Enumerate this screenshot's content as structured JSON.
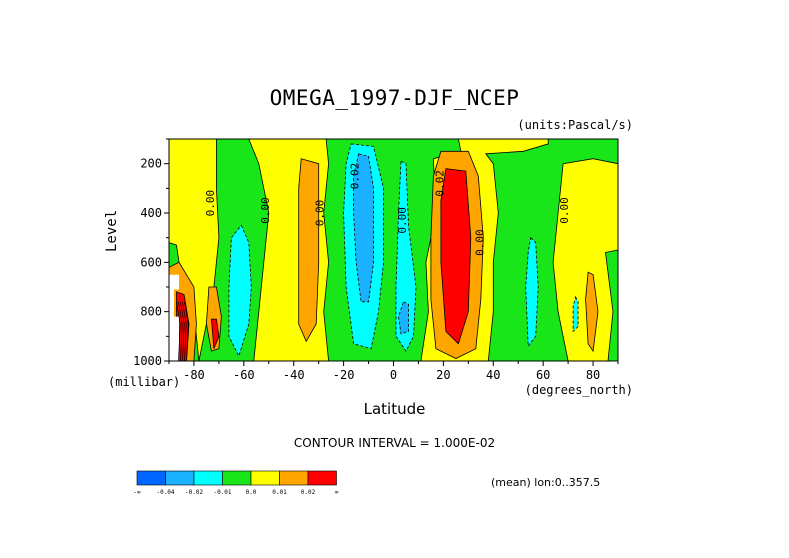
{
  "chart_data": {
    "type": "heatmap",
    "title": "OMEGA_1997-DJF_NCEP",
    "units": "(units:Pascal/s)",
    "xlabel": "Latitude",
    "xunits": "(degrees_north)",
    "ylabel": "Level",
    "yunits": "(millibar)",
    "xlim": [
      -90,
      90
    ],
    "ylim": [
      1000,
      100
    ],
    "xticks": [
      "-80",
      "-60",
      "-40",
      "-20",
      "0",
      "20",
      "40",
      "60",
      "80"
    ],
    "xtick_values": [
      -80,
      -60,
      -40,
      -20,
      0,
      20,
      40,
      60,
      80
    ],
    "yticks": [
      "200",
      "400",
      "600",
      "800",
      "1000"
    ],
    "ytick_values": [
      200,
      400,
      600,
      800,
      1000
    ],
    "background_color": "#ffff00",
    "contour_interval_text": "CONTOUR INTERVAL = 1.000E-02",
    "mean_text": "(mean) lon:0..357.5",
    "colorbar": {
      "labels": [
        "-∞",
        "-0.04",
        "-0.02",
        "-0.01",
        "0.0",
        "0.01",
        "0.02",
        "∞"
      ],
      "colors": [
        "#0066ff",
        "#1ab2ff",
        "#00ffff",
        "#19e619",
        "#ffff00",
        "#ffa500",
        "#ff0000"
      ]
    },
    "contour_labels": [
      {
        "text": "0.00",
        "lat": -72,
        "level": 360
      },
      {
        "text": "0.00",
        "lat": -50,
        "level": 390
      },
      {
        "text": "0.00",
        "lat": -28,
        "level": 400
      },
      {
        "text": "0.02",
        "lat": -14,
        "level": 250
      },
      {
        "text": "0.00",
        "lat": 5,
        "level": 430
      },
      {
        "text": "0.02",
        "lat": 20,
        "level": 280
      },
      {
        "text": "0.00",
        "lat": 36,
        "level": 520
      },
      {
        "text": "0.00",
        "lat": 70,
        "level": 390
      }
    ],
    "regions": [
      {
        "level": 0.0,
        "color": "#19e619",
        "points": [
          [
            -71,
            100
          ],
          [
            -58,
            100
          ],
          [
            -54,
            200
          ],
          [
            -50,
            400
          ],
          [
            -52,
            600
          ],
          [
            -54,
            800
          ],
          [
            -56,
            1000
          ],
          [
            -78,
            1000
          ],
          [
            -76,
            900
          ],
          [
            -72,
            700
          ],
          [
            -70,
            500
          ],
          [
            -71,
            300
          ]
        ]
      },
      {
        "level": 0.0,
        "color": "#19e619",
        "points": [
          [
            -27,
            100
          ],
          [
            26,
            100
          ],
          [
            27,
            150
          ],
          [
            16,
            180
          ],
          [
            17,
            400
          ],
          [
            13,
            600
          ],
          [
            14,
            800
          ],
          [
            11,
            1000
          ],
          [
            -26,
            1000
          ],
          [
            -28,
            800
          ],
          [
            -26,
            600
          ],
          [
            -28,
            400
          ],
          [
            -26,
            200
          ]
        ]
      },
      {
        "level": 0.0,
        "color": "#19e619",
        "points": [
          [
            37,
            160
          ],
          [
            52,
            150
          ],
          [
            62,
            120
          ],
          [
            62,
            100
          ],
          [
            90,
            100
          ],
          [
            90,
            200
          ],
          [
            80,
            180
          ],
          [
            68,
            200
          ],
          [
            66,
            400
          ],
          [
            64,
            600
          ],
          [
            66,
            800
          ],
          [
            70,
            1000
          ],
          [
            38,
            1000
          ],
          [
            40,
            800
          ],
          [
            40,
            600
          ],
          [
            42,
            400
          ],
          [
            40,
            200
          ]
        ]
      },
      {
        "level": 0.0,
        "color": "#19e619",
        "points": [
          [
            -90,
            520
          ],
          [
            -87,
            530
          ],
          [
            -86,
            600
          ],
          [
            -90,
            620
          ]
        ]
      },
      {
        "level": 0.0,
        "color": "#19e619",
        "points": [
          [
            -90,
            660
          ],
          [
            -83,
            650
          ],
          [
            -80,
            800
          ],
          [
            -78,
            1000
          ],
          [
            -90,
            1000
          ]
        ]
      },
      {
        "level": 0.0,
        "color": "#19e619",
        "points": [
          [
            85,
            560
          ],
          [
            90,
            550
          ],
          [
            90,
            1000
          ],
          [
            86,
            1000
          ],
          [
            88,
            800
          ]
        ]
      },
      {
        "level": -0.01,
        "color": "#00ffff",
        "points": [
          [
            -61,
            450
          ],
          [
            -58,
            520
          ],
          [
            -57,
            700
          ],
          [
            -58,
            850
          ],
          [
            -62,
            980
          ],
          [
            -66,
            900
          ],
          [
            -66,
            700
          ],
          [
            -65,
            500
          ]
        ]
      },
      {
        "level": -0.01,
        "color": "#00ffff",
        "points": [
          [
            -17,
            120
          ],
          [
            -8,
            130
          ],
          [
            -4,
            300
          ],
          [
            -4,
            600
          ],
          [
            -6,
            800
          ],
          [
            -9,
            950
          ],
          [
            -16,
            930
          ],
          [
            -19,
            700
          ],
          [
            -20,
            400
          ],
          [
            -19,
            200
          ]
        ]
      },
      {
        "level": -0.01,
        "color": "#00ffff",
        "points": [
          [
            3,
            190
          ],
          [
            5,
            200
          ],
          [
            6,
            450
          ],
          [
            9,
            700
          ],
          [
            8,
            900
          ],
          [
            5,
            960
          ],
          [
            1,
            900
          ],
          [
            1,
            700
          ],
          [
            2,
            400
          ]
        ]
      },
      {
        "level": -0.01,
        "color": "#00ffff",
        "points": [
          [
            55,
            500
          ],
          [
            57,
            520
          ],
          [
            58,
            700
          ],
          [
            57,
            900
          ],
          [
            54,
            940
          ],
          [
            53,
            700
          ],
          [
            54,
            560
          ]
        ]
      },
      {
        "level": -0.01,
        "color": "#00ffff",
        "points": [
          [
            73,
            740
          ],
          [
            74,
            760
          ],
          [
            74,
            860
          ],
          [
            72,
            880
          ],
          [
            72,
            780
          ]
        ]
      },
      {
        "level": -0.02,
        "color": "#1ab2ff",
        "points": [
          [
            -14,
            160
          ],
          [
            -10,
            170
          ],
          [
            -8,
            300
          ],
          [
            -8,
            600
          ],
          [
            -10,
            760
          ],
          [
            -13,
            760
          ],
          [
            -15,
            600
          ],
          [
            -16,
            400
          ],
          [
            -16,
            250
          ]
        ]
      },
      {
        "level": -0.02,
        "color": "#1ab2ff",
        "points": [
          [
            4,
            760
          ],
          [
            6,
            770
          ],
          [
            6,
            880
          ],
          [
            3,
            890
          ],
          [
            2,
            820
          ]
        ]
      },
      {
        "level": 0.01,
        "color": "#ffa500",
        "points": [
          [
            -37,
            180
          ],
          [
            -30,
            200
          ],
          [
            -30,
            600
          ],
          [
            -31,
            850
          ],
          [
            -35,
            920
          ],
          [
            -38,
            850
          ],
          [
            -38,
            600
          ],
          [
            -38,
            300
          ]
        ]
      },
      {
        "level": 0.01,
        "color": "#ffa500",
        "points": [
          [
            19,
            150
          ],
          [
            30,
            150
          ],
          [
            34,
            250
          ],
          [
            36,
            500
          ],
          [
            35,
            750
          ],
          [
            33,
            950
          ],
          [
            25,
            990
          ],
          [
            17,
            950
          ],
          [
            15,
            750
          ],
          [
            15,
            500
          ],
          [
            16,
            250
          ]
        ]
      },
      {
        "level": 0.01,
        "color": "#ffa500",
        "points": [
          [
            78,
            640
          ],
          [
            80,
            650
          ],
          [
            82,
            800
          ],
          [
            80,
            960
          ],
          [
            78,
            930
          ],
          [
            77,
            750
          ]
        ]
      },
      {
        "level": 0.01,
        "color": "#ffa500",
        "points": [
          [
            -90,
            620
          ],
          [
            -86,
            600
          ],
          [
            -83,
            650
          ],
          [
            -80,
            700
          ],
          [
            -79,
            850
          ],
          [
            -80,
            1000
          ],
          [
            -90,
            1000
          ]
        ]
      },
      {
        "level": 0.01,
        "color": "#ffa500",
        "points": [
          [
            -74,
            700
          ],
          [
            -71,
            700
          ],
          [
            -69,
            820
          ],
          [
            -70,
            950
          ],
          [
            -73,
            960
          ],
          [
            -75,
            850
          ]
        ]
      },
      {
        "level": 0.02,
        "color": "#ff0000",
        "points": [
          [
            21,
            220
          ],
          [
            29,
            230
          ],
          [
            31,
            500
          ],
          [
            30,
            800
          ],
          [
            26,
            930
          ],
          [
            21,
            880
          ],
          [
            19,
            600
          ],
          [
            19,
            350
          ]
        ]
      },
      {
        "level": 0.02,
        "color": "#ff0000",
        "points": [
          [
            -87,
            720
          ],
          [
            -84,
            730
          ],
          [
            -82,
            850
          ],
          [
            -83,
            1000
          ],
          [
            -87,
            1000
          ]
        ]
      },
      {
        "level": 0.02,
        "color": "#ff0000",
        "points": [
          [
            -73,
            830
          ],
          [
            -71,
            830
          ],
          [
            -70,
            900
          ],
          [
            -72,
            950
          ]
        ]
      }
    ],
    "blank_region": {
      "points": [
        [
          -90,
          650
        ],
        [
          -86,
          650
        ],
        [
          -86,
          710
        ],
        [
          -88,
          710
        ],
        [
          -88,
          820
        ],
        [
          -86,
          820
        ],
        [
          -86,
          1000
        ],
        [
          -90,
          1000
        ]
      ]
    }
  }
}
